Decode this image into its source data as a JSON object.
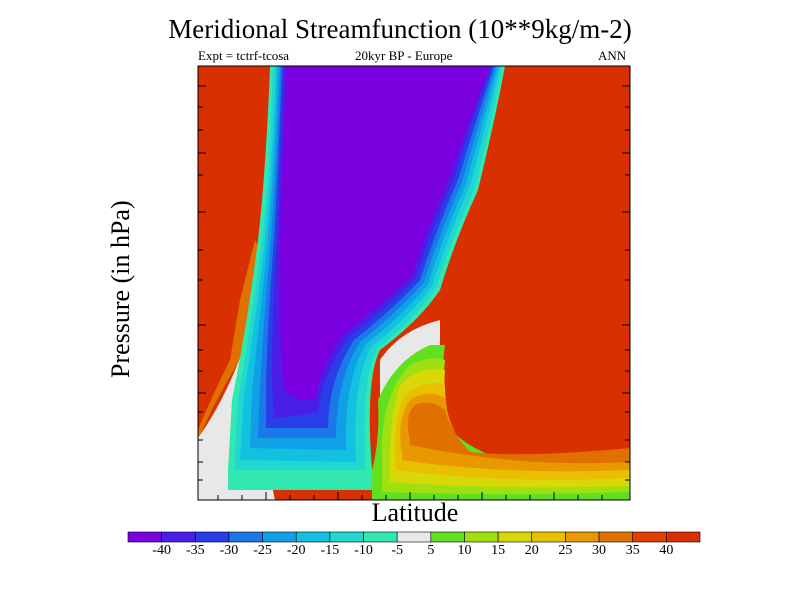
{
  "chart_data": {
    "type": "contour",
    "title": "Meridional Streamfunction (10**9kg/m-2)",
    "experiment_label": "Expt = tctrf-tcosa",
    "period_label": "20kyr BP - Europe",
    "season_label": "ANN",
    "xlabel": "Latitude",
    "ylabel": "Pressure (in hPa)",
    "colorbar": {
      "levels": [
        -40,
        -35,
        -30,
        -25,
        -20,
        -15,
        -10,
        -5,
        5,
        10,
        15,
        20,
        25,
        30,
        35,
        40
      ],
      "tick_labels": [
        "-40",
        "-35",
        "-30",
        "-25",
        "-20",
        "-15",
        "-10",
        "-5",
        "5",
        "10",
        "15",
        "20",
        "25",
        "30",
        "35",
        "40"
      ],
      "colors": [
        "#7a00e0",
        "#4a1ee6",
        "#2a3ee8",
        "#1a78e8",
        "#10a0e6",
        "#12c0e0",
        "#20d8d0",
        "#30e8b0",
        "#e8e8e8",
        "#60e020",
        "#a0e010",
        "#d8d808",
        "#e8c000",
        "#e89800",
        "#e07000",
        "#e04000",
        "#d83000"
      ]
    },
    "regions": [
      {
        "name": "negative-cell",
        "min_value": -40,
        "approx_value": "< -40",
        "description": "large negative streamfunction cell in the tropics"
      },
      {
        "name": "positive-cell-south",
        "approx_value": "> 40"
      },
      {
        "name": "positive-cell-north",
        "approx_value": "> 40"
      }
    ]
  }
}
